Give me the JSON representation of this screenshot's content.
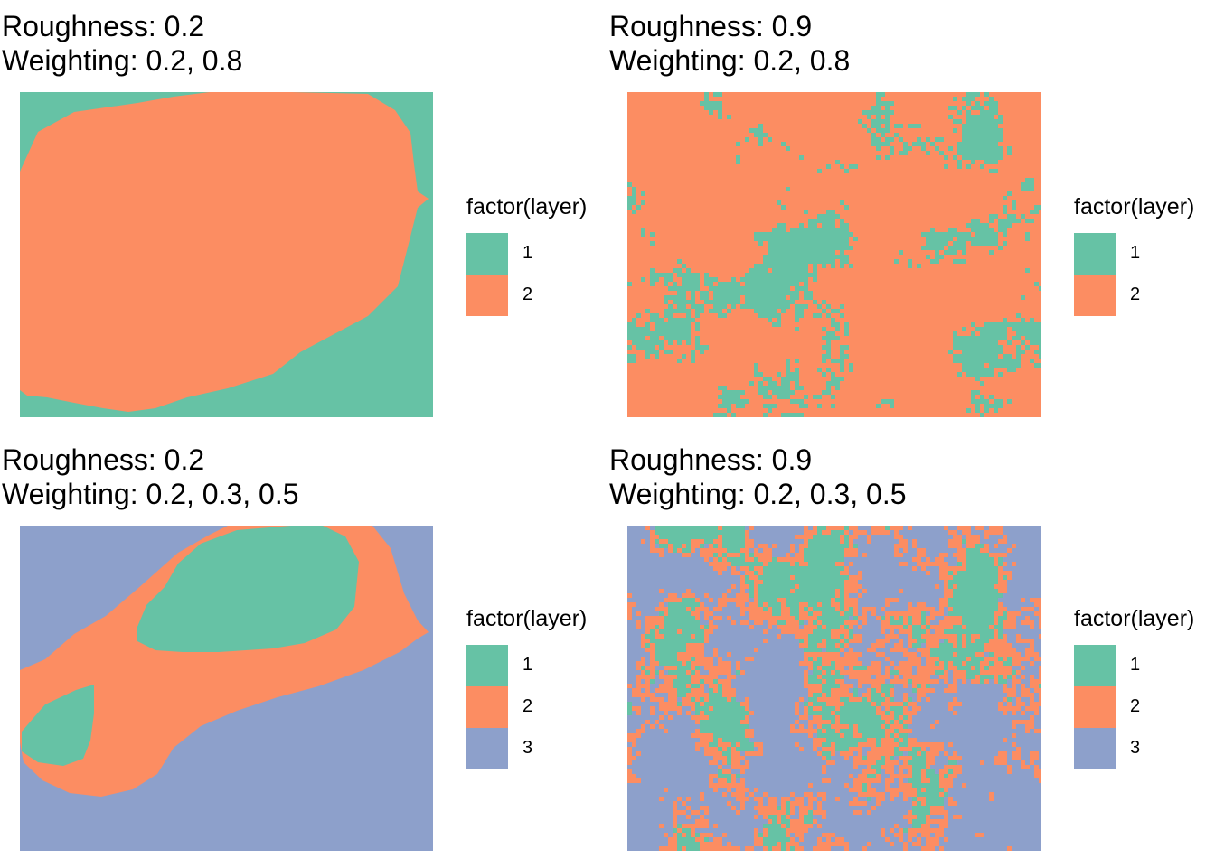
{
  "palette": {
    "1": "#66C2A5",
    "2": "#FC8D62",
    "3": "#8DA0CB"
  },
  "chart_data": [
    {
      "type": "heatmap",
      "title_line1": "Roughness: 0.2",
      "title_line2": "Weighting: 0.2, 0.8",
      "roughness": 0.2,
      "weighting": [
        0.2,
        0.8
      ],
      "legend": {
        "title": "factor(layer)",
        "entries": [
          "1",
          "2"
        ],
        "position": "right"
      },
      "grid": false,
      "axes": false
    },
    {
      "type": "heatmap",
      "title_line1": "Roughness: 0.9",
      "title_line2": "Weighting: 0.2, 0.8",
      "roughness": 0.9,
      "weighting": [
        0.2,
        0.8
      ],
      "legend": {
        "title": "factor(layer)",
        "entries": [
          "1",
          "2"
        ],
        "position": "right"
      },
      "grid": false,
      "axes": false
    },
    {
      "type": "heatmap",
      "title_line1": "Roughness: 0.2",
      "title_line2": "Weighting: 0.2, 0.3, 0.5",
      "roughness": 0.2,
      "weighting": [
        0.2,
        0.3,
        0.5
      ],
      "legend": {
        "title": "factor(layer)",
        "entries": [
          "1",
          "2",
          "3"
        ],
        "position": "right"
      },
      "grid": false,
      "axes": false
    },
    {
      "type": "heatmap",
      "title_line1": "Roughness: 0.9",
      "title_line2": "Weighting: 0.2, 0.3, 0.5",
      "roughness": 0.9,
      "weighting": [
        0.2,
        0.3,
        0.5
      ],
      "legend": {
        "title": "factor(layer)",
        "entries": [
          "1",
          "2",
          "3"
        ],
        "position": "right"
      },
      "grid": false,
      "axes": false
    }
  ]
}
